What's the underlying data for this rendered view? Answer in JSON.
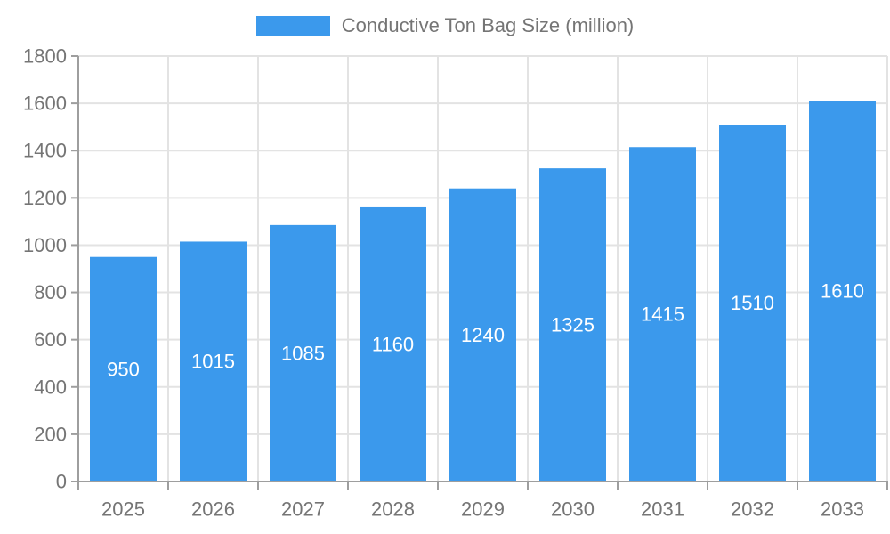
{
  "legend": {
    "label": "Conductive Ton Bag Size (million)"
  },
  "chart_data": {
    "type": "bar",
    "title": "Conductive Ton Bag Size (million)",
    "categories": [
      "2025",
      "2026",
      "2027",
      "2028",
      "2029",
      "2030",
      "2031",
      "2032",
      "2033"
    ],
    "values": [
      950,
      1015,
      1085,
      1160,
      1240,
      1325,
      1415,
      1510,
      1610
    ],
    "xlabel": "",
    "ylabel": "",
    "ylim": [
      0,
      1800
    ],
    "yticks": [
      0,
      200,
      400,
      600,
      800,
      1000,
      1200,
      1400,
      1600,
      1800
    ],
    "grid": true,
    "legend_position": "top-center",
    "colors": {
      "bar": "#3B99EC",
      "value_label": "#FFFFFF",
      "axis_text": "#757575",
      "grid_line": "#E3E3E3",
      "axis_line": "#9E9E9E"
    }
  }
}
